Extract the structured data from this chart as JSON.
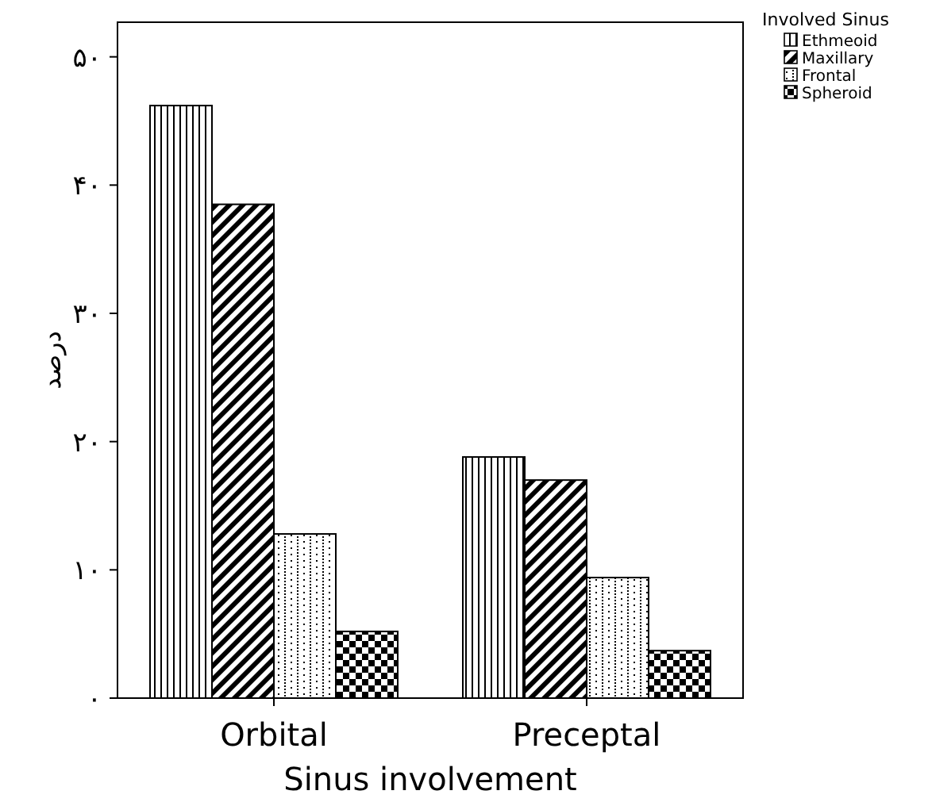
{
  "chart_data": {
    "type": "bar",
    "xlabel": "Sinus involvement",
    "ylabel": "درصد",
    "legend_title": "Involved Sinus",
    "legend": "top right",
    "categories": [
      "Orbital",
      "Preceptal"
    ],
    "series": [
      {
        "name": "Ethmeoid",
        "color": "#000000",
        "values": [
          46.2,
          18.8
        ]
      },
      {
        "name": "Maxillary",
        "color": "#000000",
        "values": [
          38.5,
          17.0
        ]
      },
      {
        "name": "Frontal",
        "color": "#000000",
        "values": [
          12.8,
          9.4
        ]
      },
      {
        "name": "Spheroid",
        "color": "#000000",
        "values": [
          5.2,
          3.7
        ]
      }
    ],
    "ylim": [
      0,
      52.7
    ],
    "yticks": [
      {
        "value": 0,
        "label": "۰"
      },
      {
        "value": 10,
        "label": "۱۰"
      },
      {
        "value": 20,
        "label": "۲۰"
      },
      {
        "value": 30,
        "label": "۳۰"
      },
      {
        "value": 40,
        "label": "۴۰"
      },
      {
        "value": 50,
        "label": "۵۰"
      }
    ]
  }
}
